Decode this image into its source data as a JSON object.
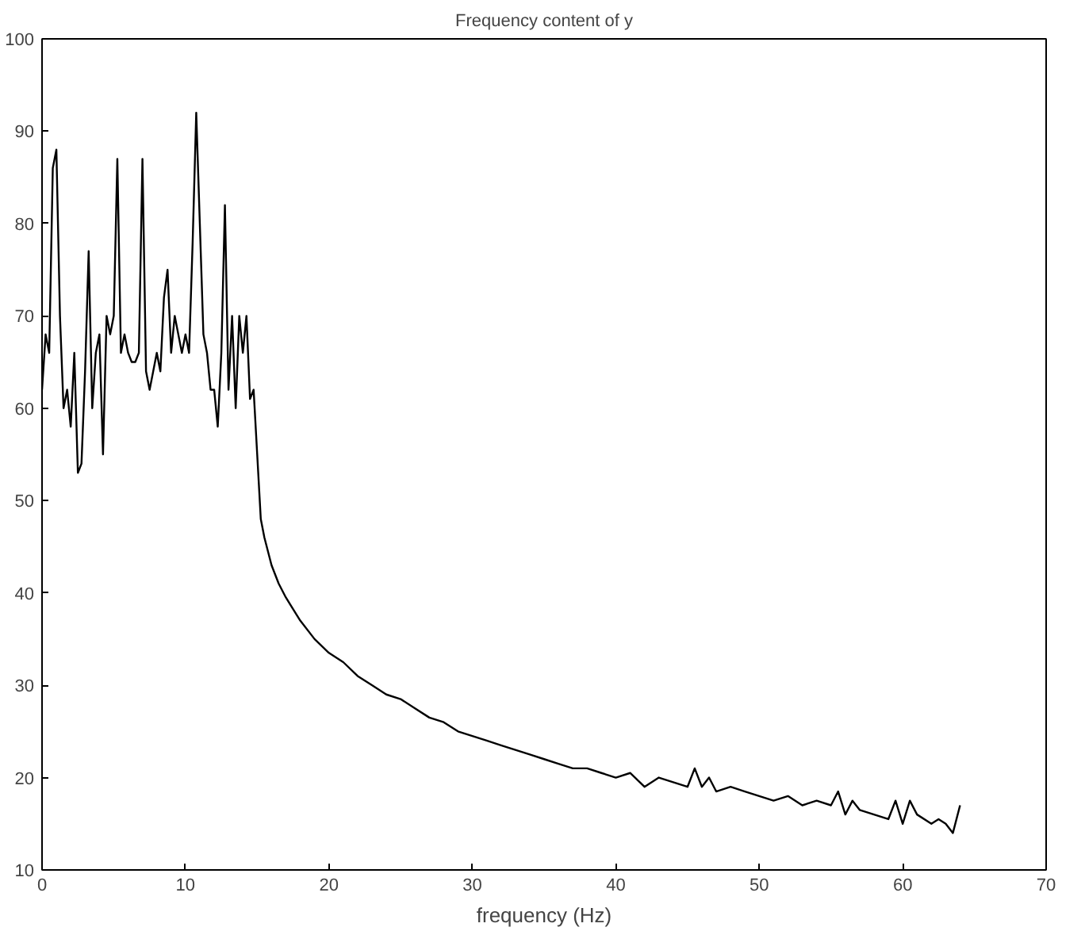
{
  "chart_data": {
    "type": "line",
    "title": "Frequency content of y",
    "xlabel": "frequency (Hz)",
    "x": [
      0,
      0.25,
      0.5,
      0.75,
      1,
      1.25,
      1.5,
      1.75,
      2,
      2.25,
      2.5,
      2.75,
      3,
      3.25,
      3.5,
      3.75,
      4,
      4.25,
      4.5,
      4.75,
      5,
      5.25,
      5.5,
      5.75,
      6,
      6.25,
      6.5,
      6.75,
      7,
      7.25,
      7.5,
      7.75,
      8,
      8.25,
      8.5,
      8.75,
      9,
      9.25,
      9.5,
      9.75,
      10,
      10.25,
      10.5,
      10.75,
      11,
      11.25,
      11.5,
      11.75,
      12,
      12.25,
      12.5,
      12.75,
      13,
      13.25,
      13.5,
      13.75,
      14,
      14.25,
      14.5,
      14.75,
      15,
      15.25,
      15.5,
      16,
      16.5,
      17,
      18,
      19,
      20,
      21,
      22,
      23,
      24,
      25,
      26,
      27,
      28,
      29,
      30,
      31,
      32,
      33,
      34,
      35,
      36,
      37,
      38,
      39,
      40,
      41,
      42,
      43,
      44,
      45,
      45.5,
      46,
      46.5,
      47,
      48,
      49,
      50,
      51,
      52,
      53,
      54,
      55,
      55.5,
      56,
      56.5,
      57,
      58,
      59,
      59.5,
      60,
      60.5,
      61,
      62,
      62.5,
      63,
      63.5,
      64
    ],
    "values": [
      62,
      68,
      66,
      86,
      88,
      70,
      60,
      62,
      58,
      66,
      53,
      54,
      64,
      77,
      60,
      66,
      68,
      55,
      70,
      68,
      70,
      87,
      66,
      68,
      66,
      65,
      65,
      66,
      87,
      64,
      62,
      64,
      66,
      64,
      72,
      75,
      66,
      70,
      68,
      66,
      68,
      66,
      78,
      92,
      80,
      68,
      66,
      62,
      62,
      58,
      66,
      82,
      62,
      70,
      60,
      70,
      66,
      70,
      61,
      62,
      55,
      48,
      46,
      43,
      41,
      39.5,
      37,
      35,
      33.5,
      32.5,
      31,
      30,
      29,
      28.5,
      27.5,
      26.5,
      26,
      25,
      24.5,
      24,
      23.5,
      23,
      22.5,
      22,
      21.5,
      21,
      21,
      20.5,
      20,
      20.5,
      19,
      20,
      19.5,
      19,
      21,
      19,
      20,
      18.5,
      19,
      18.5,
      18,
      17.5,
      18,
      17,
      17.5,
      17,
      18.5,
      16,
      17.5,
      16.5,
      16,
      15.5,
      17.5,
      15,
      17.5,
      16,
      15,
      15.5,
      15,
      14,
      17
    ],
    "color": "#000000",
    "xlim": [
      0,
      70
    ],
    "ylim": [
      10,
      100
    ],
    "xticks": [
      0,
      10,
      20,
      30,
      40,
      50,
      60,
      70
    ],
    "yticks": [
      10,
      20,
      30,
      40,
      50,
      60,
      70,
      80,
      90,
      100
    ],
    "grid": false
  }
}
